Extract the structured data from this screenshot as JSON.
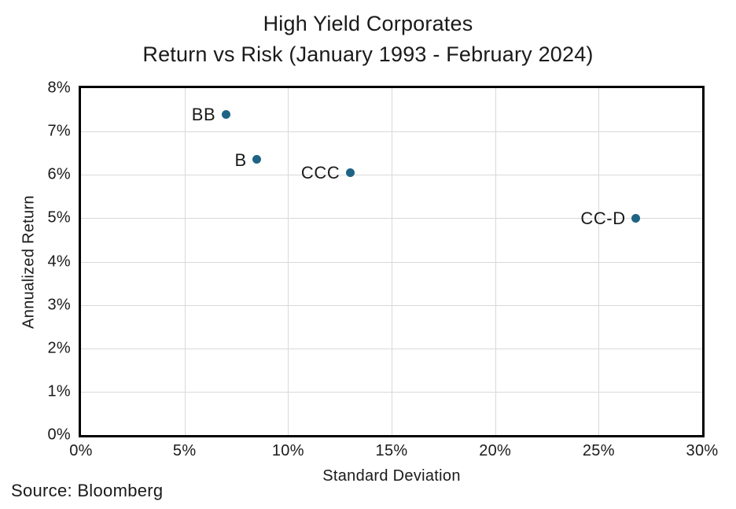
{
  "title": {
    "line1": "High Yield Corporates",
    "line2": "Return vs Risk (January 1993 - February 2024)"
  },
  "source_note": "Source: Bloomberg",
  "chart_data": {
    "type": "scatter",
    "title": "High Yield Corporates Return vs Risk (January 1993 - February 2024)",
    "xlabel": "Standard Deviation",
    "ylabel": "Annualized Return",
    "xlim": [
      0,
      30
    ],
    "ylim": [
      0,
      8
    ],
    "x_ticks": {
      "values": [
        0,
        5,
        10,
        15,
        20,
        25,
        30
      ],
      "labels": [
        "0%",
        "5%",
        "10%",
        "15%",
        "20%",
        "25%",
        "30%"
      ]
    },
    "y_ticks": {
      "values": [
        0,
        1,
        2,
        3,
        4,
        5,
        6,
        7,
        8
      ],
      "labels": [
        "0%",
        "1%",
        "2%",
        "3%",
        "4%",
        "5%",
        "6%",
        "7%",
        "8%"
      ]
    },
    "grid": true,
    "legend": "none",
    "point_label_position": "left",
    "points": [
      {
        "label": "BB",
        "x": 7.0,
        "y": 7.4
      },
      {
        "label": "B",
        "x": 8.5,
        "y": 6.35
      },
      {
        "label": "CCC",
        "x": 13.0,
        "y": 6.05
      },
      {
        "label": "CC-D",
        "x": 26.8,
        "y": 5.0
      }
    ],
    "colors": {
      "point": "#1f6385",
      "gridline": "#d9d9d9",
      "axis_border": "#000000",
      "text": "#1a1a1a"
    }
  }
}
